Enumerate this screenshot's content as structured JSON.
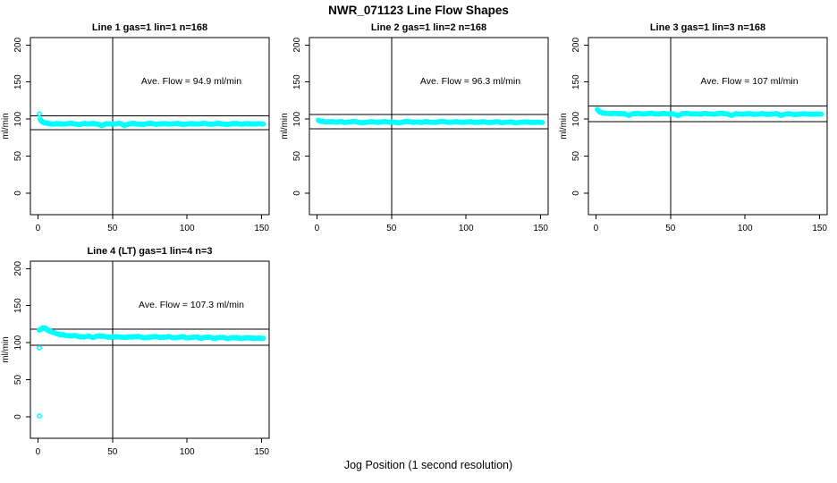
{
  "figure": {
    "title": "NWR_071123  Line Flow Shapes",
    "xlabel": "Jog Position (1 second resolution)",
    "background": "#ffffff",
    "point_color": "#00ffff",
    "line_color": "#000000"
  },
  "chart_data": [
    {
      "type": "scatter",
      "title": "Line 1 gas=1 lin=1 n=168",
      "annotation": "Ave. Flow =  94.9  ml/min",
      "ave_flow": 94.9,
      "n": 168,
      "ylabel": "ml/min",
      "xticks": [
        0,
        50,
        100,
        150
      ],
      "yticks": [
        0,
        50,
        100,
        150,
        200
      ],
      "xlim": [
        -5,
        155
      ],
      "ylim": [
        -29,
        210
      ],
      "vline_x": 50,
      "ref_lines": [
        104.4,
        85.4
      ],
      "spread": 0.9,
      "points": [
        [
          1,
          107
        ],
        [
          1.5,
          100.3
        ],
        [
          2,
          98
        ],
        [
          3,
          96.3
        ],
        [
          4,
          95.4
        ],
        [
          5.5,
          94.6
        ],
        [
          7,
          94
        ],
        [
          8.5,
          93.6
        ],
        [
          10,
          93.3
        ],
        [
          13,
          94.1
        ],
        [
          16,
          93
        ],
        [
          19,
          93.8
        ],
        [
          22,
          94.4
        ],
        [
          25,
          93.1
        ],
        [
          28,
          92.8
        ],
        [
          31,
          94
        ],
        [
          34,
          93.4
        ],
        [
          37,
          94.2
        ],
        [
          40,
          92.9
        ],
        [
          43,
          91.4
        ],
        [
          46,
          93.9
        ],
        [
          49,
          93.2
        ],
        [
          52,
          93.8
        ],
        [
          55,
          94.3
        ],
        [
          58,
          91.2
        ],
        [
          61,
          93.6
        ],
        [
          64,
          94.1
        ],
        [
          67,
          93.2
        ],
        [
          70,
          92.8
        ],
        [
          73,
          93.7
        ],
        [
          76,
          94.4
        ],
        [
          79,
          93
        ],
        [
          82,
          93.5
        ],
        [
          85,
          94
        ],
        [
          88,
          93.2
        ],
        [
          91,
          93.8
        ],
        [
          94,
          94.2
        ],
        [
          97,
          92.7
        ],
        [
          100,
          93.4
        ],
        [
          103,
          94
        ],
        [
          106,
          93.2
        ],
        [
          109,
          93.7
        ],
        [
          112,
          94.3
        ],
        [
          115,
          92.9
        ],
        [
          118,
          93.5
        ],
        [
          121,
          94.1
        ],
        [
          124,
          93.3
        ],
        [
          127,
          92.8
        ],
        [
          130,
          93.6
        ],
        [
          133,
          94.2
        ],
        [
          136,
          93
        ],
        [
          139,
          93.7
        ],
        [
          142,
          93.9
        ],
        [
          145,
          93.2
        ],
        [
          148,
          93.8
        ],
        [
          151,
          93.4
        ]
      ]
    },
    {
      "type": "scatter",
      "title": "Line 2 gas=1 lin=2 n=168",
      "annotation": "Ave. Flow =  96.3  ml/min",
      "ave_flow": 96.3,
      "n": 168,
      "ylabel": "ml/min",
      "xticks": [
        0,
        50,
        100,
        150
      ],
      "yticks": [
        0,
        50,
        100,
        150,
        200
      ],
      "xlim": [
        -5,
        155
      ],
      "ylim": [
        -29,
        210
      ],
      "vline_x": 50,
      "ref_lines": [
        105.9,
        86.7
      ],
      "spread": 0.8,
      "points": [
        [
          1,
          98.3
        ],
        [
          2,
          97.4
        ],
        [
          3.5,
          96.9
        ],
        [
          5,
          96.5
        ],
        [
          7,
          96.2
        ],
        [
          10,
          96.6
        ],
        [
          13,
          95.8
        ],
        [
          16,
          96.4
        ],
        [
          19,
          95.6
        ],
        [
          22,
          96.2
        ],
        [
          25,
          96.8
        ],
        [
          28,
          95.7
        ],
        [
          31,
          94.8
        ],
        [
          34,
          96.1
        ],
        [
          37,
          96.6
        ],
        [
          40,
          95.5
        ],
        [
          43,
          96.2
        ],
        [
          46,
          96.7
        ],
        [
          49,
          95.6
        ],
        [
          52,
          96.1
        ],
        [
          55,
          94.7
        ],
        [
          58,
          96.3
        ],
        [
          61,
          96.8
        ],
        [
          64,
          95.6
        ],
        [
          67,
          96.2
        ],
        [
          70,
          95.4
        ],
        [
          73,
          96.5
        ],
        [
          76,
          96
        ],
        [
          79,
          95.3
        ],
        [
          82,
          96.4
        ],
        [
          85,
          96.9
        ],
        [
          88,
          95.5
        ],
        [
          91,
          96.1
        ],
        [
          94,
          96.6
        ],
        [
          97,
          95.4
        ],
        [
          100,
          96
        ],
        [
          103,
          96.5
        ],
        [
          106,
          95.3
        ],
        [
          109,
          95.9
        ],
        [
          112,
          96.4
        ],
        [
          115,
          95.2
        ],
        [
          118,
          95.8
        ],
        [
          121,
          96.3
        ],
        [
          124,
          95.1
        ],
        [
          127,
          95.7
        ],
        [
          130,
          96.2
        ],
        [
          133,
          95
        ],
        [
          136,
          95.6
        ],
        [
          139,
          96.1
        ],
        [
          142,
          95.9
        ],
        [
          145,
          95.3
        ],
        [
          148,
          95.8
        ],
        [
          151,
          95.5
        ]
      ]
    },
    {
      "type": "scatter",
      "title": "Line 3 gas=1 lin=3 n=168",
      "annotation": "Ave. Flow =  107  ml/min",
      "ave_flow": 107,
      "n": 168,
      "ylabel": "ml/min",
      "xticks": [
        0,
        50,
        100,
        150
      ],
      "yticks": [
        0,
        50,
        100,
        150,
        200
      ],
      "xlim": [
        -5,
        155
      ],
      "ylim": [
        -29,
        210
      ],
      "vline_x": 50,
      "ref_lines": [
        117.7,
        96.3
      ],
      "spread": 0.7,
      "points": [
        [
          1,
          113
        ],
        [
          1.5,
          111.6
        ],
        [
          2,
          110.6
        ],
        [
          3,
          109.4
        ],
        [
          4,
          108.7
        ],
        [
          5.5,
          108.1
        ],
        [
          7,
          107.7
        ],
        [
          10,
          107.3
        ],
        [
          13,
          107.8
        ],
        [
          16,
          106.9
        ],
        [
          19,
          107.5
        ],
        [
          22,
          104.9
        ],
        [
          25,
          107.2
        ],
        [
          28,
          107.8
        ],
        [
          31,
          106.7
        ],
        [
          34,
          107.3
        ],
        [
          37,
          107.9
        ],
        [
          40,
          106.6
        ],
        [
          43,
          107.2
        ],
        [
          46,
          107.7
        ],
        [
          49,
          106.5
        ],
        [
          52,
          107.1
        ],
        [
          55,
          104.8
        ],
        [
          58,
          107.4
        ],
        [
          61,
          107.9
        ],
        [
          64,
          106.6
        ],
        [
          67,
          107.2
        ],
        [
          70,
          106.5
        ],
        [
          73,
          107.6
        ],
        [
          76,
          107
        ],
        [
          79,
          106.4
        ],
        [
          82,
          107.4
        ],
        [
          85,
          107.9
        ],
        [
          88,
          106.5
        ],
        [
          91,
          104.9
        ],
        [
          94,
          107.5
        ],
        [
          97,
          106.4
        ],
        [
          100,
          107
        ],
        [
          103,
          107.5
        ],
        [
          106,
          106.3
        ],
        [
          109,
          106.9
        ],
        [
          112,
          107.4
        ],
        [
          115,
          106.2
        ],
        [
          118,
          106.8
        ],
        [
          121,
          107.3
        ],
        [
          124,
          105
        ],
        [
          127,
          106.7
        ],
        [
          130,
          107.2
        ],
        [
          133,
          106.1
        ],
        [
          136,
          106.6
        ],
        [
          139,
          107.1
        ],
        [
          142,
          106.9
        ],
        [
          145,
          106.3
        ],
        [
          148,
          106.8
        ],
        [
          151,
          106.5
        ]
      ]
    },
    {
      "type": "scatter",
      "title": "Line 4 (LT) gas=1 lin=4 n=3",
      "annotation": "Ave. Flow =  107.3  ml/min",
      "ave_flow": 107.3,
      "n": 3,
      "ylabel": "ml/min",
      "xticks": [
        0,
        50,
        100,
        150
      ],
      "yticks": [
        0,
        50,
        100,
        150,
        200
      ],
      "xlim": [
        -5,
        155
      ],
      "ylim": [
        -29,
        210
      ],
      "vline_x": 50,
      "ref_lines": [
        118.0,
        96.6
      ],
      "spread": 1.4,
      "points": [
        [
          1,
          1
        ],
        [
          1,
          93
        ],
        [
          1,
          117
        ],
        [
          1.5,
          117.8
        ],
        [
          2,
          118.4
        ],
        [
          3,
          119.4
        ],
        [
          4,
          120
        ],
        [
          5,
          119.2
        ],
        [
          6,
          118.1
        ],
        [
          7,
          116.6
        ],
        [
          8,
          115.6
        ],
        [
          10,
          114
        ],
        [
          12,
          112.6
        ],
        [
          14,
          111.6
        ],
        [
          16,
          110.7
        ],
        [
          19,
          109.9
        ],
        [
          22,
          109
        ],
        [
          25,
          109.6
        ],
        [
          28,
          108.2
        ],
        [
          31,
          107.6
        ],
        [
          34,
          108.9
        ],
        [
          37,
          107.2
        ],
        [
          40,
          108.6
        ],
        [
          43,
          109.1
        ],
        [
          46,
          107.8
        ],
        [
          49,
          107.1
        ],
        [
          52,
          108.4
        ],
        [
          55,
          107.7
        ],
        [
          58,
          106.9
        ],
        [
          61,
          108.1
        ],
        [
          64,
          107.4
        ],
        [
          67,
          108.7
        ],
        [
          70,
          107
        ],
        [
          73,
          106.5
        ],
        [
          76,
          107.9
        ],
        [
          79,
          108.3
        ],
        [
          82,
          106.8
        ],
        [
          85,
          107.6
        ],
        [
          88,
          108.1
        ],
        [
          91,
          106.6
        ],
        [
          94,
          107.3
        ],
        [
          97,
          108
        ],
        [
          100,
          106.4
        ],
        [
          103,
          107.1
        ],
        [
          106,
          107.7
        ],
        [
          109,
          106.2
        ],
        [
          112,
          106.9
        ],
        [
          115,
          107.4
        ],
        [
          118,
          105.9
        ],
        [
          121,
          106.6
        ],
        [
          124,
          107.2
        ],
        [
          127,
          105.8
        ],
        [
          130,
          106.4
        ],
        [
          133,
          107
        ],
        [
          136,
          105.7
        ],
        [
          139,
          106.3
        ],
        [
          142,
          106.9
        ],
        [
          145,
          105.6
        ],
        [
          148,
          106.2
        ],
        [
          151,
          106
        ]
      ]
    }
  ]
}
